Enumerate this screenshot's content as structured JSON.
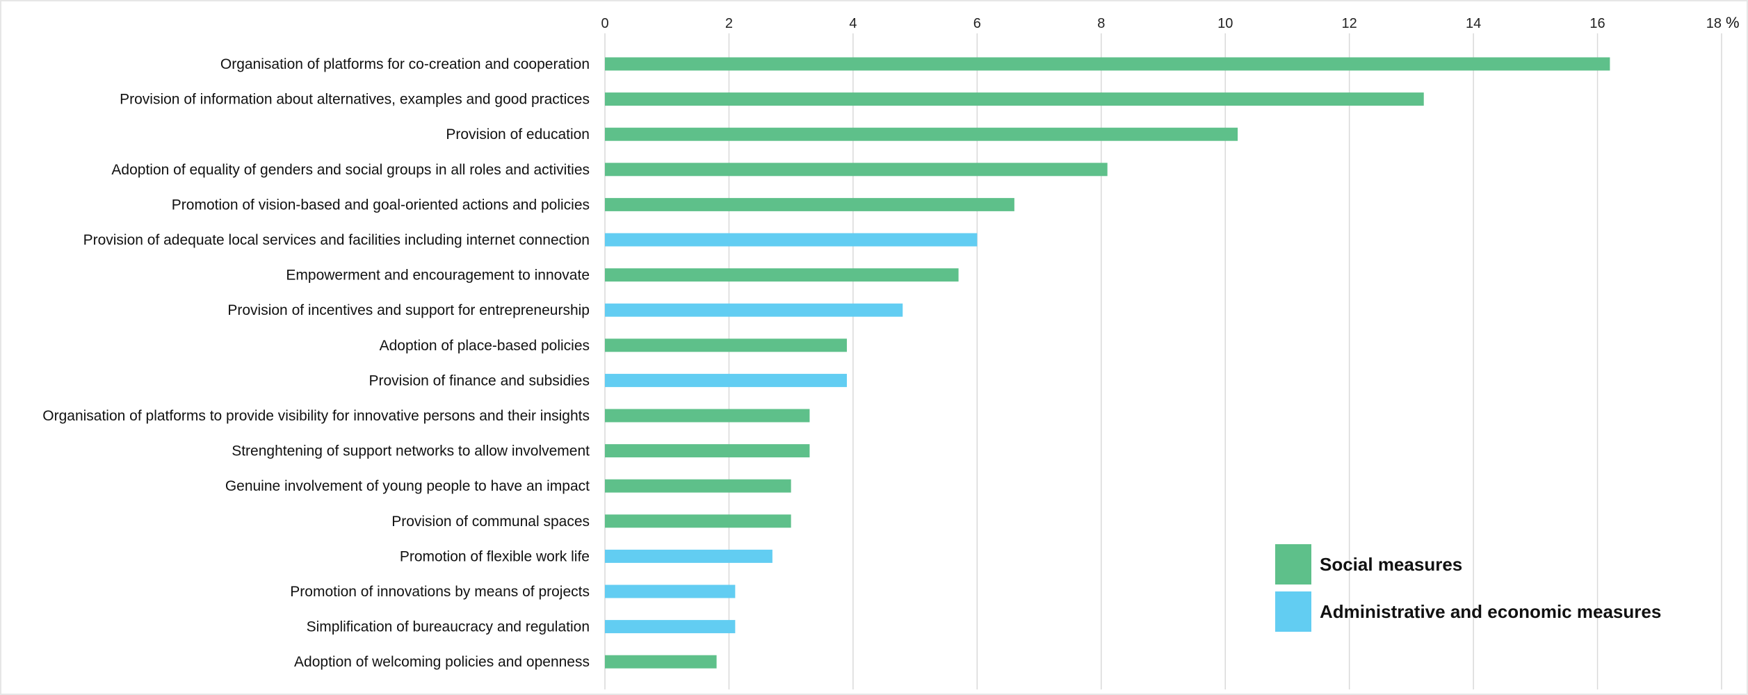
{
  "chart_data": {
    "type": "bar",
    "orientation": "horizontal",
    "xlabel": "%",
    "xlim": [
      0,
      18
    ],
    "xticks": [
      "0",
      "2",
      "4",
      "6",
      "8",
      "10",
      "12",
      "14",
      "16",
      "18"
    ],
    "grid": true,
    "legend_position": "bottom-right",
    "categories": [
      "Organisation of platforms for co-creation and cooperation",
      "Provision of information about alternatives, examples and good practices",
      "Provision of education",
      "Adoption of equality of genders and social groups in all roles and activities",
      "Promotion of vision-based and goal-oriented actions and policies",
      "Provision of adequate local services and facilities including internet connection",
      "Empowerment and encouragement to innovate",
      "Provision of incentives and support for entrepreneurship",
      "Adoption of place-based policies",
      "Provision of finance and subsidies",
      "Organisation of platforms to provide visibility for innovative persons and their insights",
      "Strenghtening of support networks to allow involvement",
      "Genuine involvement of young people to have an impact",
      "Provision of communal spaces",
      "Promotion of flexible work life",
      "Promotion of innovations by means of projects",
      "Simplification of bureaucracy and regulation",
      "Adoption of welcoming policies and openness"
    ],
    "values": [
      16.2,
      13.2,
      10.2,
      8.1,
      6.6,
      6.0,
      5.7,
      4.8,
      3.9,
      3.9,
      3.3,
      3.3,
      3.0,
      3.0,
      2.7,
      2.1,
      2.1,
      1.8
    ],
    "groups": [
      "social",
      "social",
      "social",
      "social",
      "social",
      "admin",
      "social",
      "admin",
      "social",
      "admin",
      "social",
      "social",
      "social",
      "social",
      "admin",
      "admin",
      "admin",
      "social"
    ],
    "legend": [
      {
        "key": "social",
        "name": "Social measures",
        "color": "#5ec08a"
      },
      {
        "key": "admin",
        "name": "Administrative and economic measures",
        "color": "#62cdf2"
      }
    ]
  }
}
